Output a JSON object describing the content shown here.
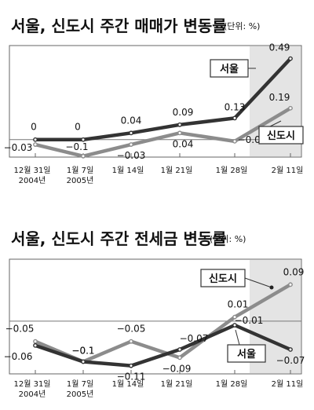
{
  "chart_data": [
    {
      "type": "line",
      "title": "서울, 신도시 주간 매매가 변동률",
      "unit_note": "(단위: %)",
      "categories": [
        [
          "12월 31일",
          "2004년"
        ],
        [
          "1월 7일",
          "2005년"
        ],
        [
          "1월 14일"
        ],
        [
          "1월 21일"
        ],
        [
          "1월 28일"
        ],
        [
          "2월 11일"
        ]
      ],
      "series": [
        {
          "name": "서울",
          "values": [
            0,
            0,
            0.04,
            0.09,
            0.13,
            0.49
          ],
          "color": "#333333"
        },
        {
          "name": "신도시",
          "values": [
            -0.03,
            -0.1,
            -0.03,
            0.04,
            -0.01,
            0.19
          ],
          "color": "#8c8c8c"
        }
      ],
      "ylim": [
        -0.12,
        0.55
      ]
    },
    {
      "type": "line",
      "title": "서울, 신도시 주간 전세금 변동률",
      "unit_note": "(단위: %)",
      "categories": [
        [
          "12월 31일",
          "2004년"
        ],
        [
          "1월 7일",
          "2005년"
        ],
        [
          "1월 14일"
        ],
        [
          "1월 21일"
        ],
        [
          "1월 28일"
        ],
        [
          "2월 11일"
        ]
      ],
      "series": [
        {
          "name": "서울",
          "values": [
            -0.06,
            -0.1,
            -0.11,
            -0.07,
            -0.01,
            -0.07
          ],
          "color": "#333333"
        },
        {
          "name": "신도시",
          "values": [
            -0.05,
            -0.1,
            -0.05,
            -0.09,
            0.01,
            0.09
          ],
          "color": "#8c8c8c"
        }
      ],
      "ylim": [
        -0.13,
        0.11
      ]
    }
  ]
}
